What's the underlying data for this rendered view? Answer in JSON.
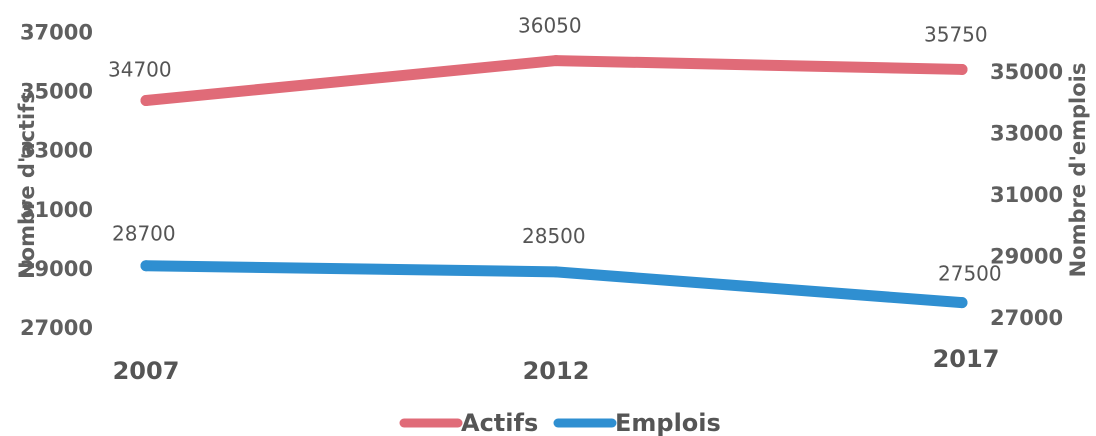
{
  "chart_data": {
    "type": "line",
    "x": [
      "2007",
      "2012",
      "2017"
    ],
    "series": [
      {
        "name": "Actifs",
        "axis": "left",
        "color": "#e06b78",
        "values": [
          34700,
          36050,
          35750
        ],
        "labels": [
          "34700",
          "36050",
          "35750"
        ]
      },
      {
        "name": "Emplois",
        "axis": "right",
        "color": "#2f8fd1",
        "values": [
          28700,
          28500,
          27500
        ],
        "labels": [
          "28700",
          "28500",
          "27500"
        ]
      }
    ],
    "left_axis": {
      "label": "Nombre d'actifs",
      "ylim": [
        27000,
        37000
      ],
      "ticks": [
        "27000",
        "29000",
        "31000",
        "33000",
        "35000",
        "37000"
      ]
    },
    "right_axis": {
      "label": "Nombre d'emplois",
      "ylim": [
        27000,
        35000
      ],
      "ticks": [
        "27000",
        "29000",
        "31000",
        "33000",
        "35000"
      ]
    },
    "grid": false,
    "legend": "bottom-center"
  }
}
